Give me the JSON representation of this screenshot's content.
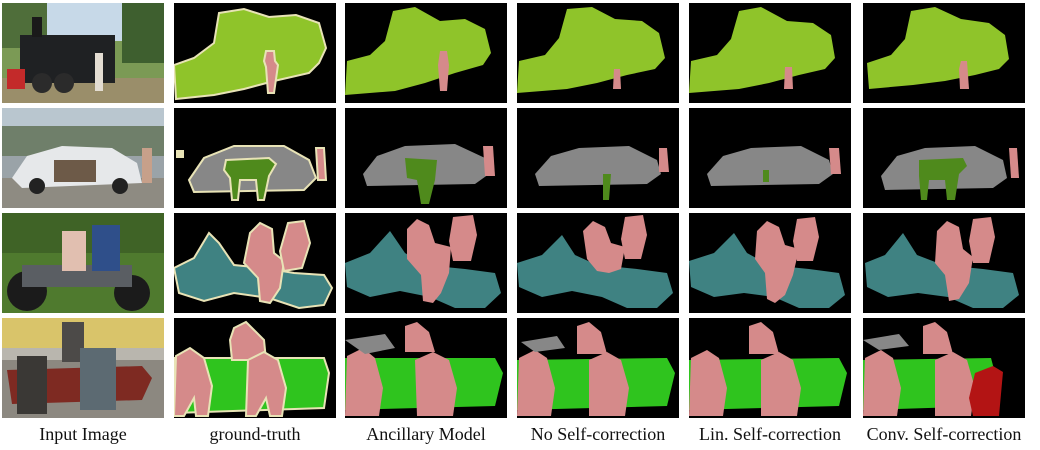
{
  "figure": {
    "columns": [
      "Input Image",
      "ground-truth",
      "Ancillary Model",
      "No Self-correction",
      "Lin. Self-correction",
      "Conv. Self-correction"
    ]
  },
  "colors": {
    "background": "#000000",
    "person": "#d58a8a",
    "train": "#8fc42a",
    "car": "#878787",
    "cow": "#4f8a1c",
    "motorbike": "#3f8282",
    "sofa": "#2fc41e",
    "chair": "#b31414",
    "boundary": "#e8e3b6"
  }
}
